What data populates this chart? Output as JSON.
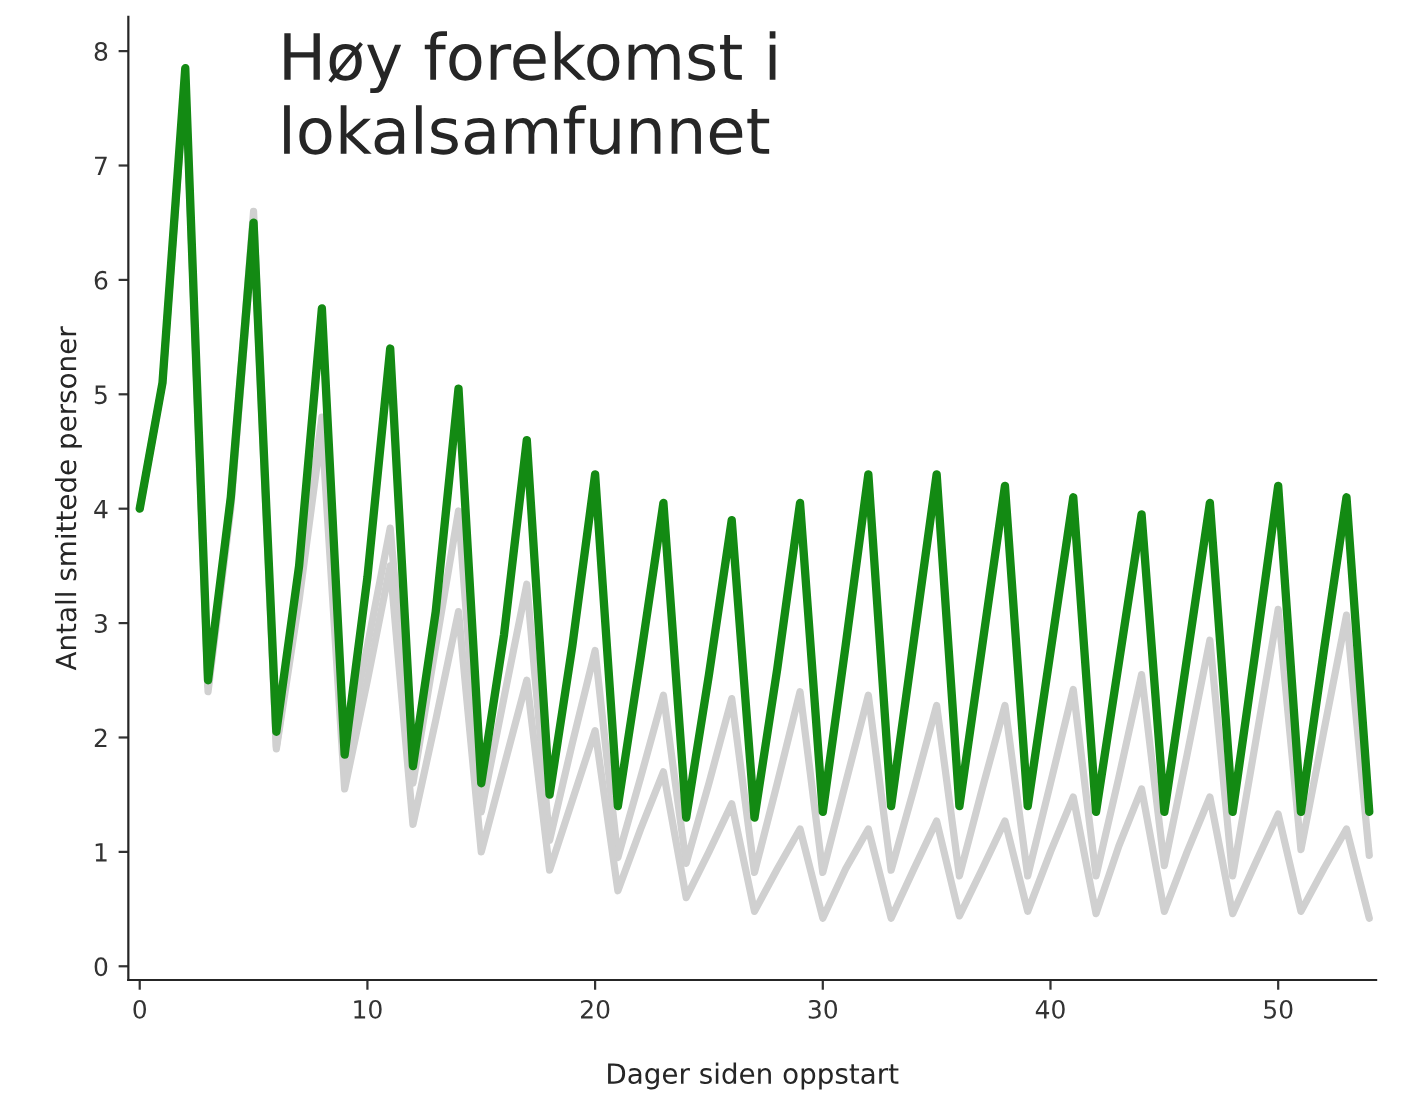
{
  "chart_data": {
    "type": "line",
    "title": "Høy forekomst i\nlokalsamfunnet",
    "xlabel": "Dager siden oppstart",
    "ylabel": "Antall smittede personer",
    "x": [
      0,
      1,
      2,
      3,
      4,
      5,
      6,
      7,
      8,
      9,
      10,
      11,
      12,
      13,
      14,
      15,
      16,
      17,
      18,
      19,
      20,
      21,
      22,
      23,
      24,
      25,
      26,
      27,
      28,
      29,
      30,
      31,
      32,
      33,
      34,
      35,
      36,
      37,
      38,
      39,
      40,
      41,
      42,
      43,
      44,
      45,
      46,
      47,
      48,
      49,
      50,
      51,
      52,
      53,
      54
    ],
    "series": [
      {
        "color": "#d0d0d0",
        "values": [
          4.0,
          5.1,
          7.8,
          2.45,
          4.1,
          6.6,
          1.92,
          3.3,
          4.8,
          1.8,
          2.8,
          3.83,
          1.6,
          2.8,
          3.98,
          1.35,
          2.35,
          3.34,
          1.1,
          1.95,
          2.76,
          0.95,
          1.65,
          2.37,
          0.9,
          1.6,
          2.34,
          0.82,
          1.6,
          2.4,
          0.82,
          1.6,
          2.37,
          0.84,
          1.55,
          2.28,
          0.79,
          1.55,
          2.28,
          0.79,
          1.6,
          2.42,
          0.79,
          1.65,
          2.55,
          0.88,
          1.85,
          2.85,
          0.79,
          1.95,
          3.12,
          1.02,
          2.05,
          3.07,
          0.97
        ]
      },
      {
        "color": "#d0d0d0",
        "values": [
          4.0,
          5.1,
          7.8,
          2.4,
          4.0,
          6.45,
          1.9,
          3.2,
          4.7,
          1.55,
          2.5,
          3.5,
          1.24,
          2.15,
          3.1,
          1.0,
          1.75,
          2.5,
          0.84,
          1.45,
          2.06,
          0.66,
          1.2,
          1.7,
          0.6,
          1.0,
          1.42,
          0.48,
          0.85,
          1.2,
          0.42,
          0.85,
          1.2,
          0.42,
          0.85,
          1.27,
          0.44,
          0.85,
          1.27,
          0.48,
          1.0,
          1.48,
          0.46,
          1.05,
          1.55,
          0.48,
          1.0,
          1.48,
          0.46,
          0.9,
          1.33,
          0.48,
          0.85,
          1.2,
          0.42
        ]
      },
      {
        "color": "#138a13",
        "values": [
          4.0,
          5.1,
          7.85,
          2.5,
          4.1,
          6.5,
          2.05,
          3.5,
          5.75,
          1.85,
          3.4,
          5.4,
          1.75,
          3.1,
          5.05,
          1.6,
          2.9,
          4.6,
          1.5,
          2.8,
          4.3,
          1.4,
          2.7,
          4.05,
          1.3,
          2.55,
          3.9,
          1.3,
          2.6,
          4.05,
          1.35,
          2.8,
          4.3,
          1.4,
          2.85,
          4.3,
          1.4,
          2.8,
          4.2,
          1.4,
          2.75,
          4.1,
          1.35,
          2.65,
          3.95,
          1.35,
          2.7,
          4.05,
          1.35,
          2.75,
          4.2,
          1.35,
          2.75,
          4.1,
          1.35
        ]
      }
    ],
    "xlim": [
      -0.5,
      54.3
    ],
    "ylim": [
      -0.12,
      8.3
    ],
    "xticks": [
      0,
      10,
      20,
      30,
      40,
      50
    ],
    "yticks": [
      0,
      1,
      2,
      3,
      4,
      5,
      6,
      7,
      8
    ],
    "grid": false,
    "legend": false
  }
}
